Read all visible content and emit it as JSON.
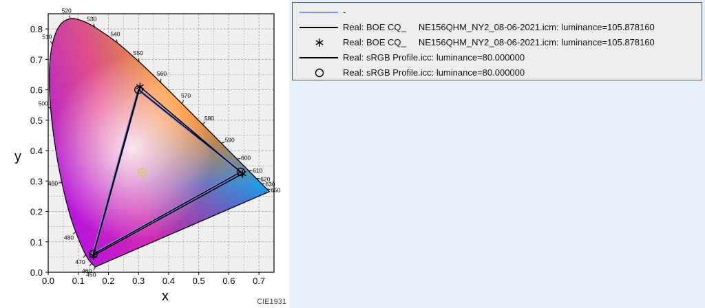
{
  "chart_data": {
    "type": "scatter",
    "subtype": "cie-1931-chromaticity-diagram",
    "xlabel": "x",
    "ylabel": "y",
    "xlim": [
      0.0,
      0.75
    ],
    "ylim": [
      0.0,
      0.85
    ],
    "x_ticks": [
      "0.0",
      "0.1",
      "0.2",
      "0.3",
      "0.4",
      "0.5",
      "0.6",
      "0.7"
    ],
    "y_ticks": [
      "0.0",
      "0.1",
      "0.2",
      "0.3",
      "0.4",
      "0.5",
      "0.6",
      "0.7",
      "0.8"
    ],
    "grid": true,
    "footer": "CIE1931",
    "spectral_locus": [
      {
        "nm": "450",
        "x": 0.1566,
        "y": 0.0177,
        "labeled": true
      },
      {
        "nm": "460",
        "x": 0.144,
        "y": 0.0297,
        "labeled": true
      },
      {
        "nm": "470",
        "x": 0.1241,
        "y": 0.0578,
        "labeled": true
      },
      {
        "nm": "480",
        "x": 0.0913,
        "y": 0.1327,
        "labeled": true
      },
      {
        "nm": "485",
        "x": 0.0687,
        "y": 0.2007,
        "labeled": false
      },
      {
        "nm": "490",
        "x": 0.0454,
        "y": 0.295,
        "labeled": true
      },
      {
        "nm": "495",
        "x": 0.0235,
        "y": 0.4127,
        "labeled": false
      },
      {
        "nm": "500",
        "x": 0.0082,
        "y": 0.5384,
        "labeled": true
      },
      {
        "nm": "505",
        "x": 0.0039,
        "y": 0.6548,
        "labeled": false
      },
      {
        "nm": "510",
        "x": 0.0139,
        "y": 0.7502,
        "labeled": true
      },
      {
        "nm": "515",
        "x": 0.0389,
        "y": 0.812,
        "labeled": false
      },
      {
        "nm": "520",
        "x": 0.0743,
        "y": 0.8338,
        "labeled": true
      },
      {
        "nm": "525",
        "x": 0.1142,
        "y": 0.8262,
        "labeled": false
      },
      {
        "nm": "530",
        "x": 0.1547,
        "y": 0.8059,
        "labeled": true
      },
      {
        "nm": "540",
        "x": 0.2296,
        "y": 0.7543,
        "labeled": true
      },
      {
        "nm": "550",
        "x": 0.3016,
        "y": 0.6923,
        "labeled": true
      },
      {
        "nm": "560",
        "x": 0.3731,
        "y": 0.6245,
        "labeled": true
      },
      {
        "nm": "570",
        "x": 0.4441,
        "y": 0.5547,
        "labeled": true
      },
      {
        "nm": "580",
        "x": 0.5125,
        "y": 0.4866,
        "labeled": true
      },
      {
        "nm": "590",
        "x": 0.5752,
        "y": 0.4242,
        "labeled": true
      },
      {
        "nm": "600",
        "x": 0.627,
        "y": 0.3725,
        "labeled": true
      },
      {
        "nm": "610",
        "x": 0.6658,
        "y": 0.334,
        "labeled": true
      },
      {
        "nm": "620",
        "x": 0.6915,
        "y": 0.3083,
        "labeled": true
      },
      {
        "nm": "630",
        "x": 0.7079,
        "y": 0.292,
        "labeled": true
      },
      {
        "nm": "650",
        "x": 0.726,
        "y": 0.274,
        "labeled": true
      },
      {
        "nm": "700",
        "x": 0.7347,
        "y": 0.2653,
        "labeled": false
      }
    ],
    "white_point": {
      "x": 0.3127,
      "y": 0.329
    },
    "series": [
      {
        "name": "-",
        "color": "#8c8cf5",
        "style": "line",
        "points": [
          [
            0.64,
            0.33
          ],
          [
            0.3,
            0.6
          ],
          [
            0.15,
            0.06
          ]
        ]
      },
      {
        "name": "Real: BOE CQ_\tNE156QHM_NY2_08-06-2021.icm: luminance=105.878160",
        "color": "#000000",
        "style": "line",
        "points": [
          [
            0.645,
            0.324
          ],
          [
            0.305,
            0.61
          ],
          [
            0.15,
            0.055
          ]
        ]
      },
      {
        "name": "Real: BOE CQ_\tNE156QHM_NY2_08-06-2021.icm: luminance=105.878160",
        "color": "#000000",
        "style": "asterisk",
        "points": [
          [
            0.645,
            0.324
          ],
          [
            0.305,
            0.61
          ],
          [
            0.15,
            0.055
          ]
        ]
      },
      {
        "name": "Real: sRGB Profile.icc: luminance=80.000000",
        "color": "#000000",
        "style": "line",
        "points": [
          [
            0.64,
            0.33
          ],
          [
            0.3,
            0.6
          ],
          [
            0.15,
            0.06
          ]
        ]
      },
      {
        "name": "Real: sRGB Profile.icc: luminance=80.000000",
        "color": "#000000",
        "style": "circle",
        "points": [
          [
            0.64,
            0.33
          ],
          [
            0.3,
            0.6
          ],
          [
            0.15,
            0.06
          ]
        ]
      }
    ]
  },
  "legend": {
    "entries": [
      {
        "label": "-",
        "symbol": "line",
        "color": "#8c8cf5"
      },
      {
        "label": "Real: BOE CQ_     NE156QHM_NY2_08-06-2021.icm: luminance=105.878160",
        "symbol": "line",
        "color": "#000000"
      },
      {
        "label": "Real: BOE CQ_     NE156QHM_NY2_08-06-2021.icm: luminance=105.878160",
        "symbol": "asterisk",
        "color": "#000000"
      },
      {
        "label": "Real: sRGB Profile.icc: luminance=80.000000",
        "symbol": "line",
        "color": "#000000"
      },
      {
        "label": "Real: sRGB Profile.icc: luminance=80.000000",
        "symbol": "circle",
        "color": "#000000"
      }
    ]
  }
}
